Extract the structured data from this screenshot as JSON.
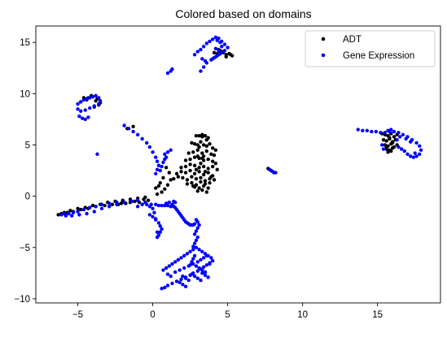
{
  "chart_data": {
    "type": "scatter",
    "title": "Colored based on domains",
    "xlabel": "",
    "ylabel": "",
    "xlim": [
      -7.8,
      19.2
    ],
    "ylim": [
      -10.4,
      16.6
    ],
    "xticks": [
      -5,
      0,
      5,
      10,
      15
    ],
    "yticks": [
      -10,
      -5,
      0,
      5,
      10,
      15
    ],
    "xtick_labels": [
      "−5",
      "0",
      "5",
      "10",
      "15"
    ],
    "ytick_labels": [
      "−10",
      "−5",
      "0",
      "5",
      "10",
      "15"
    ],
    "grid": false,
    "legend_position": "top-right",
    "series": [
      {
        "name": "ADT",
        "color": "#000000",
        "x": [
          2.9,
          3.1,
          3.3,
          3.5,
          3.7,
          2.6,
          2.8,
          3.0,
          3.2,
          3.4,
          3.6,
          3.8,
          4.0,
          4.2,
          2.4,
          2.7,
          3.0,
          3.3,
          3.6,
          3.9,
          4.1,
          2.2,
          2.5,
          2.8,
          3.1,
          3.4,
          3.7,
          4.0,
          4.2,
          1.9,
          2.2,
          2.5,
          2.8,
          3.1,
          3.4,
          3.7,
          4.0,
          4.3,
          1.6,
          1.9,
          2.2,
          2.5,
          2.8,
          3.1,
          3.4,
          3.7,
          4.0,
          1.4,
          1.7,
          2.0,
          2.3,
          2.6,
          2.9,
          3.2,
          3.5,
          3.8,
          4.1,
          2.3,
          2.6,
          2.9,
          3.2,
          3.5,
          3.8,
          2.8,
          3.1,
          3.4,
          3.7,
          3.0,
          3.3,
          3.6,
          2.9,
          3.2,
          3.5,
          3.1,
          3.4,
          3.3,
          3.6,
          2.7,
          3.9,
          1.2,
          1.0,
          0.8,
          0.6,
          0.3,
          0.2,
          0.5,
          0.7,
          1.1,
          0.4,
          0.9,
          -0.6,
          -1.2,
          -1.8,
          -2.3,
          -0.3,
          -0.9,
          -1.5,
          -2.1,
          -2.7,
          -3.2,
          -3.8,
          -4.3,
          -4.8,
          -5.3,
          -5.7,
          -6.1,
          -6.3,
          -5.9,
          -5.5,
          -5.0,
          -4.5,
          -4.0,
          -3.5,
          -3.0,
          -2.5,
          -2.0,
          -1.5,
          -1.0,
          -0.5,
          -4.3,
          -4.0,
          -3.7,
          -3.5,
          -3.8,
          -4.1,
          -3.6,
          -3.9,
          -4.4,
          -4.6,
          -4.8,
          4.5,
          4.7,
          4.9,
          5.1,
          5.3,
          4.3,
          4.6,
          4.9,
          5.2,
          4.1,
          4.4,
          15.3,
          15.5,
          15.7,
          15.9,
          16.1,
          16.3,
          15.4,
          15.6,
          15.8,
          16.0,
          16.2,
          15.5,
          15.7,
          15.9,
          16.1,
          16.3,
          15.6,
          15.8,
          16.0,
          15.7,
          15.9,
          15.8,
          16.0,
          15.6,
          7.7,
          7.9,
          8.1,
          -1.3,
          -1.7,
          3.0,
          3.3
        ],
        "y": [
          5.9,
          5.9,
          5.8,
          5.9,
          5.7,
          5.2,
          5.1,
          5.0,
          5.3,
          5.0,
          4.9,
          5.1,
          4.7,
          4.5,
          4.2,
          4.3,
          4.5,
          4.2,
          4.4,
          4.1,
          4.0,
          3.5,
          3.6,
          3.8,
          3.7,
          3.5,
          3.6,
          3.4,
          3.2,
          2.8,
          2.9,
          3.1,
          3.0,
          2.8,
          2.9,
          2.7,
          2.9,
          2.6,
          2.2,
          2.4,
          2.3,
          2.5,
          2.2,
          2.4,
          2.1,
          2.3,
          2.0,
          1.7,
          1.9,
          1.8,
          1.6,
          1.9,
          1.7,
          1.8,
          1.5,
          1.7,
          1.6,
          1.2,
          1.3,
          1.1,
          1.4,
          1.2,
          1.3,
          0.9,
          0.8,
          1.0,
          0.8,
          0.5,
          0.6,
          0.4,
          2.6,
          3.2,
          2.4,
          4.8,
          3.9,
          6.0,
          5.5,
          1.0,
          1.9,
          1.6,
          1.1,
          0.7,
          0.4,
          0.2,
          0.8,
          1.3,
          1.8,
          2.3,
          1.0,
          2.8,
          -0.3,
          -0.5,
          -0.7,
          -0.8,
          -0.4,
          -0.6,
          -0.6,
          -0.7,
          -0.8,
          -0.9,
          -1.0,
          -1.2,
          -1.3,
          -1.5,
          -1.6,
          -1.7,
          -1.8,
          -1.6,
          -1.4,
          -1.2,
          -1.1,
          -0.9,
          -0.8,
          -0.6,
          -0.5,
          -0.4,
          -0.3,
          -0.2,
          -0.1,
          9.6,
          9.7,
          9.5,
          9.1,
          9.3,
          9.8,
          8.9,
          8.7,
          9.4,
          9.6,
          9.2,
          14.2,
          14.0,
          13.8,
          13.9,
          13.7,
          13.9,
          14.1,
          13.6,
          13.8,
          14.0,
          14.3,
          6.1,
          6.0,
          5.9,
          6.1,
          5.8,
          6.0,
          5.5,
          5.4,
          5.6,
          5.3,
          5.5,
          5.0,
          4.9,
          5.1,
          4.8,
          5.0,
          4.6,
          4.5,
          4.7,
          4.3,
          4.4,
          5.7,
          5.2,
          4.8,
          2.7,
          2.5,
          2.3,
          6.8,
          6.6,
          3.9,
          3.7
        ]
      },
      {
        "name": "Gene Expression",
        "color": "#0000ff",
        "x": [
          0.6,
          0.8,
          1.0,
          1.3,
          1.6,
          1.9,
          2.2,
          2.5,
          2.7,
          3.0,
          3.2,
          3.4,
          3.6,
          3.8,
          4.0,
          3.9,
          3.7,
          3.5,
          3.3,
          3.1,
          2.9,
          2.7,
          2.5,
          2.3,
          2.1,
          1.9,
          1.7,
          1.5,
          1.3,
          1.1,
          0.9,
          0.7,
          1.0,
          1.2,
          1.5,
          1.8,
          2.1,
          2.4,
          2.7,
          3.0,
          3.2,
          3.4,
          3.6,
          3.8,
          2.9,
          3.1,
          3.3,
          3.5,
          2.6,
          2.8,
          3.0,
          3.2,
          2.7,
          2.8,
          2.9,
          3.0,
          2.8,
          2.9,
          3.0,
          3.1,
          3.0,
          2.9,
          2.8,
          2.7,
          2.6,
          2.5,
          1.8,
          2.0,
          2.2,
          3.3,
          3.5,
          3.7,
          2.4,
          2.2,
          2.0,
          -0.7,
          -0.4,
          -0.1,
          0.2,
          0.4,
          0.6,
          0.8,
          1.0,
          1.2,
          1.4,
          1.5,
          1.6,
          1.7,
          1.8,
          1.9,
          2.0,
          2.1,
          2.2,
          2.3,
          2.4,
          2.5,
          2.6,
          2.7,
          2.8,
          -0.2,
          0.0,
          0.2,
          0.4,
          0.5,
          0.6,
          0.5,
          0.4,
          0.3,
          0.2,
          0.1,
          0.0,
          -0.2,
          0.3,
          -1.0,
          -0.5,
          -2.4,
          -2.9,
          -3.4,
          -3.8,
          -4.2,
          -4.6,
          -5.0,
          -5.3,
          -5.6,
          -5.9,
          -6.1,
          -5.8,
          -5.4,
          -4.9,
          -4.4,
          -3.9,
          -3.4,
          -2.9,
          -2.4,
          -1.9,
          -1.4,
          -1.0,
          1.4,
          1.5,
          1.3,
          0.9,
          1.1,
          -5.0,
          -4.8,
          -4.6,
          -4.4,
          -4.2,
          -4.0,
          -3.8,
          -3.6,
          -3.5,
          -3.6,
          -3.9,
          -4.2,
          -4.5,
          -4.8,
          -5.0,
          -4.9,
          -4.7,
          -4.5,
          -4.3,
          -3.7,
          -1.9,
          -1.6,
          -1.3,
          -1.0,
          -0.7,
          -0.4,
          -0.2,
          0.0,
          0.2,
          0.3,
          0.4,
          0.3,
          0.2,
          0.5,
          0.6,
          0.7,
          0.8,
          0.9,
          0.8,
          1.0,
          1.2,
          2.8,
          3.0,
          3.2,
          3.4,
          3.6,
          3.8,
          4.0,
          4.2,
          4.4,
          4.6,
          4.8,
          5.0,
          4.8,
          4.5,
          4.3,
          4.1,
          3.9,
          4.0,
          4.2,
          4.4,
          4.6,
          4.4,
          4.2,
          4.6,
          4.5,
          4.3,
          3.2,
          3.4,
          3.6,
          3.5,
          3.3,
          1.0,
          1.2,
          1.3,
          13.7,
          14.0,
          14.3,
          14.6,
          14.9,
          15.2,
          15.5,
          15.8,
          16.1,
          16.4,
          16.7,
          17.0,
          17.3,
          17.6,
          17.8,
          17.9,
          17.8,
          17.6,
          17.4,
          17.2,
          17.0,
          16.8,
          16.6,
          16.4,
          15.7,
          15.9,
          15.3,
          15.4,
          16.5,
          16.9,
          17.2,
          17.5,
          16.3,
          7.8,
          8.0,
          8.2
        ],
        "y": [
          -9.0,
          -8.9,
          -8.7,
          -8.5,
          -8.3,
          -8.1,
          -7.9,
          -7.7,
          -7.5,
          -7.3,
          -7.1,
          -6.9,
          -6.7,
          -6.5,
          -6.3,
          -6.0,
          -5.8,
          -5.6,
          -5.4,
          -5.2,
          -5.0,
          -5.2,
          -5.4,
          -5.6,
          -5.8,
          -6.0,
          -6.2,
          -6.4,
          -6.6,
          -6.8,
          -7.0,
          -7.2,
          -7.6,
          -7.8,
          -7.4,
          -7.2,
          -7.0,
          -6.8,
          -6.6,
          -6.4,
          -6.2,
          -6.0,
          -5.8,
          -6.6,
          -6.8,
          -7.0,
          -7.2,
          -7.4,
          -7.6,
          -7.8,
          -8.0,
          -8.2,
          -4.9,
          -4.6,
          -4.3,
          -4.0,
          -3.7,
          -3.4,
          -3.1,
          -2.8,
          -2.5,
          -2.3,
          -5.8,
          -6.1,
          -6.4,
          -6.7,
          -8.4,
          -8.6,
          -8.8,
          -7.5,
          -7.7,
          -7.9,
          -8.2,
          -8.0,
          -7.8,
          -0.8,
          -0.8,
          -0.8,
          -0.8,
          -0.9,
          -0.9,
          -0.9,
          -0.9,
          -1.0,
          -1.0,
          -1.1,
          -1.3,
          -1.5,
          -1.7,
          -1.9,
          -2.1,
          -2.3,
          -2.5,
          -2.6,
          -2.7,
          -2.8,
          -2.8,
          -2.8,
          -2.7,
          -1.8,
          -2.0,
          -2.3,
          -2.6,
          -2.9,
          -3.2,
          -3.5,
          -3.8,
          -4.0,
          -2.2,
          -1.6,
          -1.2,
          -1.0,
          -3.5,
          -1.0,
          -0.6,
          -0.6,
          -0.7,
          -0.8,
          -1.0,
          -1.1,
          -1.3,
          -1.5,
          -1.6,
          -1.7,
          -1.7,
          -1.8,
          -1.9,
          -1.9,
          -1.8,
          -1.7,
          -1.5,
          -1.2,
          -1.0,
          -0.8,
          -0.6,
          -0.5,
          -0.4,
          -0.5,
          -0.6,
          -0.8,
          -0.7,
          -0.6,
          9.0,
          9.2,
          9.4,
          9.5,
          9.6,
          9.7,
          9.8,
          9.6,
          9.3,
          9.0,
          8.8,
          8.6,
          8.4,
          8.3,
          8.5,
          7.8,
          7.6,
          7.5,
          7.7,
          4.1,
          6.9,
          6.6,
          6.3,
          6.0,
          5.6,
          5.2,
          4.8,
          4.3,
          3.8,
          3.4,
          3.0,
          2.6,
          2.2,
          2.5,
          2.9,
          3.3,
          3.6,
          3.8,
          4.1,
          4.3,
          4.5,
          13.8,
          14.1,
          14.3,
          14.6,
          14.9,
          15.1,
          15.3,
          15.5,
          15.4,
          15.1,
          14.8,
          14.5,
          14.2,
          13.9,
          13.7,
          13.5,
          13.3,
          13.4,
          13.6,
          13.8,
          14.0,
          14.2,
          14.4,
          14.6,
          15.0,
          15.2,
          12.2,
          12.6,
          13.0,
          13.2,
          13.4,
          12.0,
          12.2,
          12.4,
          6.5,
          6.4,
          6.4,
          6.3,
          6.3,
          6.2,
          6.2,
          6.3,
          6.3,
          6.2,
          6.0,
          5.8,
          5.5,
          5.2,
          4.9,
          4.5,
          4.1,
          3.9,
          3.8,
          3.9,
          4.1,
          4.4,
          4.6,
          4.8,
          6.4,
          6.5,
          5.0,
          4.6,
          5.8,
          5.6,
          5.3,
          4.2,
          5.5,
          2.6,
          2.4,
          2.3
        ]
      }
    ]
  }
}
